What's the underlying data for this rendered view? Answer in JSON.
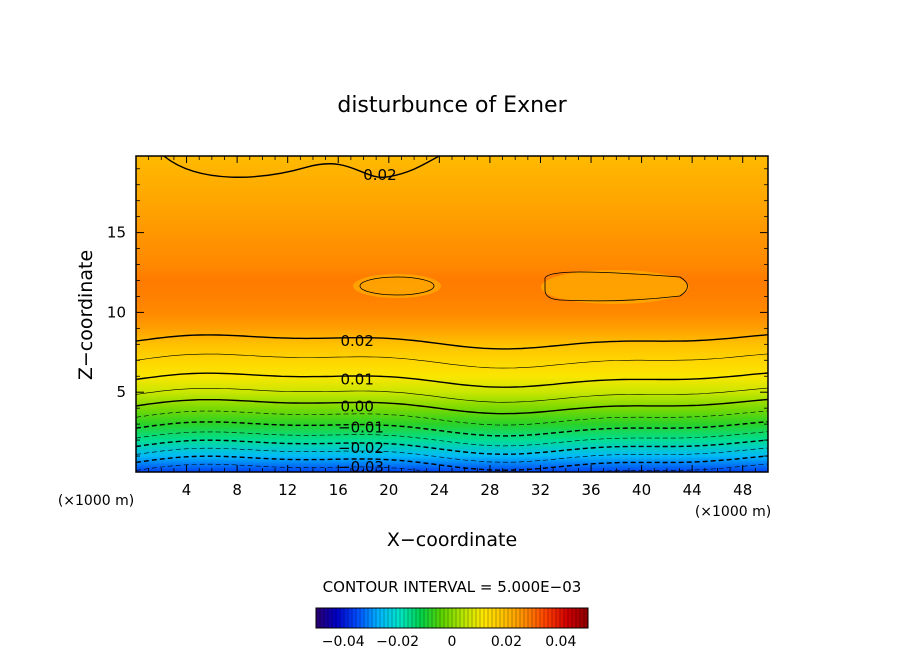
{
  "chart_data": {
    "type": "contour",
    "title": "disturbunce of Exner",
    "xlabel": "X−coordinate",
    "ylabel": "Z−coordinate",
    "x_unit_left": "(×1000 m)",
    "x_unit_right": "(×1000 m)",
    "xlim": [
      0,
      50
    ],
    "ylim": [
      0,
      19.8
    ],
    "xticks": [
      4,
      8,
      12,
      16,
      20,
      24,
      28,
      32,
      36,
      40,
      44,
      48
    ],
    "xtick_labels": [
      "4",
      "8",
      "12",
      "16",
      "20",
      "24",
      "28",
      "32",
      "36",
      "40",
      "44",
      "48"
    ],
    "yticks": [
      5,
      10,
      15
    ],
    "ytick_labels": [
      "5",
      "10",
      "15"
    ],
    "contour_interval_text": "CONTOUR INTERVAL = 5.000E−03",
    "contour_interval": 0.005,
    "contour_labels": [
      {
        "text": "0.02",
        "x": 19.3,
        "z": 18.6
      },
      {
        "text": "0.02",
        "x": 17.5,
        "z": 8.2
      },
      {
        "text": "0.01",
        "x": 17.5,
        "z": 5.8
      },
      {
        "text": "0.00",
        "x": 17.5,
        "z": 4.1
      },
      {
        "text": "−0.01",
        "x": 17.8,
        "z": 2.8
      },
      {
        "text": "−0.02",
        "x": 17.8,
        "z": 1.5
      },
      {
        "text": "−0.03",
        "x": 17.8,
        "z": 0.3
      }
    ],
    "field_profile": [
      {
        "z": 0.0,
        "value": -0.036
      },
      {
        "z": 1.0,
        "value": -0.026
      },
      {
        "z": 2.0,
        "value": -0.016
      },
      {
        "z": 3.0,
        "value": -0.008
      },
      {
        "z": 4.0,
        "value": -0.001
      },
      {
        "z": 5.0,
        "value": 0.006
      },
      {
        "z": 6.0,
        "value": 0.011
      },
      {
        "z": 7.0,
        "value": 0.015
      },
      {
        "z": 8.0,
        "value": 0.019
      },
      {
        "z": 9.0,
        "value": 0.024
      },
      {
        "z": 10.0,
        "value": 0.027
      },
      {
        "z": 11.0,
        "value": 0.028
      },
      {
        "z": 12.0,
        "value": 0.0285
      },
      {
        "z": 13.0,
        "value": 0.027
      },
      {
        "z": 14.0,
        "value": 0.026
      },
      {
        "z": 15.0,
        "value": 0.025
      },
      {
        "z": 16.0,
        "value": 0.024
      },
      {
        "z": 17.0,
        "value": 0.023
      },
      {
        "z": 18.0,
        "value": 0.022
      },
      {
        "z": 19.0,
        "value": 0.021
      },
      {
        "z": 19.8,
        "value": 0.02
      }
    ],
    "colorbar": {
      "min": -0.05,
      "max": 0.05,
      "tick_values": [
        -0.04,
        -0.02,
        0,
        0.02,
        0.04
      ],
      "tick_labels": [
        "−0.04",
        "−0.02",
        "0",
        "0.02",
        "0.04"
      ],
      "colors": [
        "#2b006e",
        "#0000c8",
        "#0050ff",
        "#00b4ff",
        "#00e6c8",
        "#00d24a",
        "#5ad200",
        "#b4e600",
        "#ffe600",
        "#ffc000",
        "#ff8a00",
        "#ff4000",
        "#d20000",
        "#8c0000"
      ]
    }
  }
}
